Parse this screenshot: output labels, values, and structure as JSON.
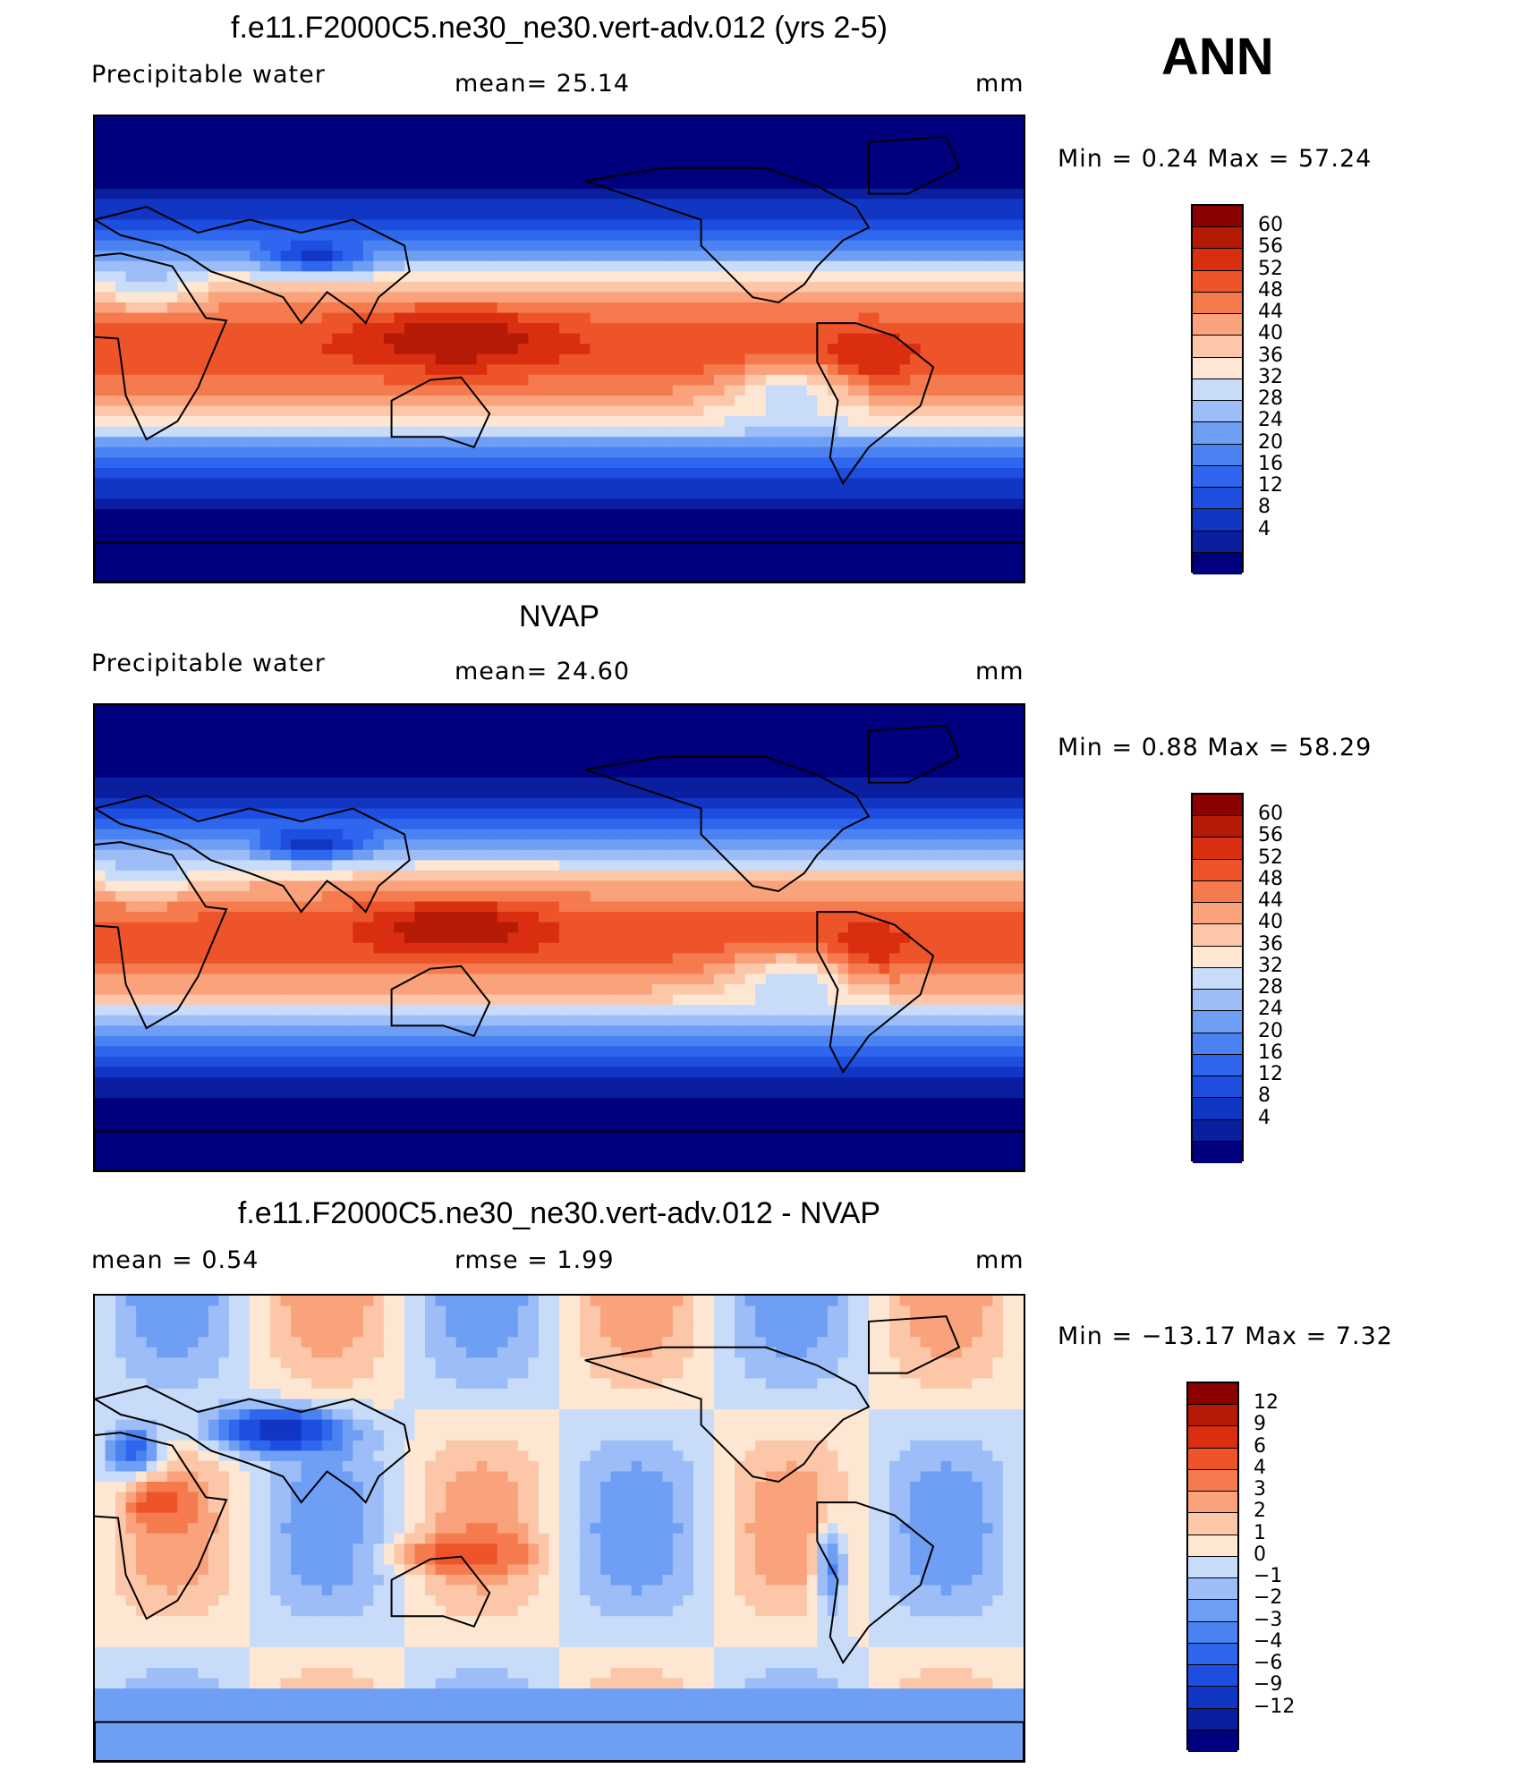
{
  "season": "ANN",
  "colors": {
    "field": [
      "#00007f",
      "#0a1fa0",
      "#1236c4",
      "#1d4ee0",
      "#2e66ee",
      "#4a82f2",
      "#6f9ef5",
      "#9cbdf7",
      "#c8dcfa",
      "#fde7d2",
      "#fcc7a8",
      "#f9a27b",
      "#f57b4f",
      "#ee542a",
      "#d92f10",
      "#b41a06",
      "#8b0000"
    ],
    "diff": [
      "#00007f",
      "#0a1fa0",
      "#1236c4",
      "#1d4ee0",
      "#2e66ee",
      "#4a82f2",
      "#6f9ef5",
      "#9cbdf7",
      "#c8dcfa",
      "#fde7d2",
      "#fcc7a8",
      "#f9a27b",
      "#f57b4f",
      "#ee542a",
      "#d92f10",
      "#b41a06",
      "#8b0000"
    ]
  },
  "panels": [
    {
      "title": "f.e11.F2000C5.ne30_ne30.vert-adv.012 (yrs 2-5)",
      "left_label": "Precipitable  water",
      "center_label": "mean=   25.14",
      "units": "mm",
      "minmax": "Min  =     0.24  Max  =    57.24",
      "colorbar": {
        "levels": [
          "60",
          "56",
          "52",
          "48",
          "44",
          "40",
          "36",
          "32",
          "28",
          "24",
          "20",
          "16",
          "12",
          "8",
          "4"
        ]
      },
      "map_data": {
        "type": "heatmap",
        "field": "Precipitable water",
        "units": "mm",
        "mean": 25.14,
        "min": 0.24,
        "max": 57.24
      }
    },
    {
      "title": "NVAP",
      "left_label": "Precipitable  water",
      "center_label": "mean=   24.60",
      "units": "mm",
      "minmax": "Min  =     0.88  Max  =    58.29",
      "colorbar": {
        "levels": [
          "60",
          "56",
          "52",
          "48",
          "44",
          "40",
          "36",
          "32",
          "28",
          "24",
          "20",
          "16",
          "12",
          "8",
          "4"
        ]
      },
      "map_data": {
        "type": "heatmap",
        "field": "Precipitable water",
        "units": "mm",
        "mean": 24.6,
        "min": 0.88,
        "max": 58.29
      }
    },
    {
      "title": "f.e11.F2000C5.ne30_ne30.vert-adv.012 - NVAP",
      "left_label": "mean  =     0.54",
      "center_label": "rmse  =     1.99",
      "units": "mm",
      "minmax": "Min  = −13.17  Max  =     7.32",
      "colorbar": {
        "levels": [
          "12",
          "9",
          "6",
          "4",
          "3",
          "2",
          "1",
          "0",
          "−1",
          "−2",
          "−3",
          "−4",
          "−6",
          "−9",
          "−12"
        ]
      },
      "map_data": {
        "type": "heatmap",
        "field": "difference",
        "units": "mm",
        "mean": 0.54,
        "rmse": 1.99,
        "min": -13.17,
        "max": 7.32
      }
    }
  ]
}
